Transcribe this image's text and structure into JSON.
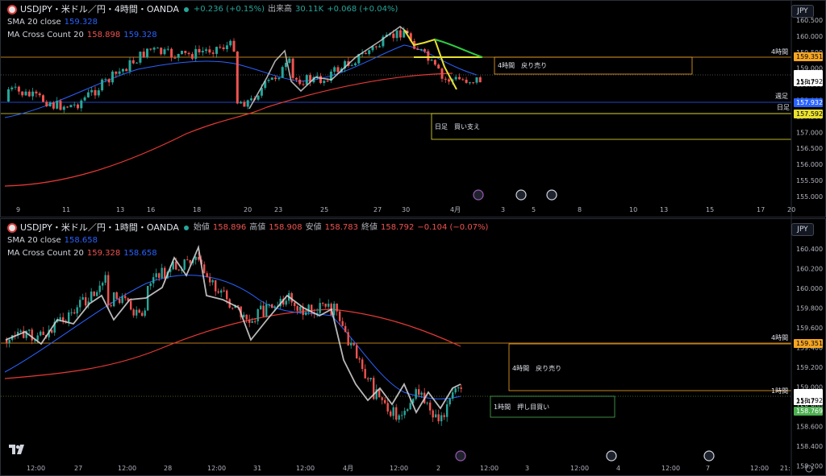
{
  "pane1": {
    "title": "USDJPY・米ドル／円・4時間・OANDA",
    "change": "+0.236 (+0.15%)",
    "volume_label": "出来高",
    "volume_value": "30.11K",
    "volume_change": "+0.068 (+0.04%)",
    "sma_label": "SMA 20 close",
    "sma_value": "159.328",
    "ma_cross_label": "MA Cross Count 20",
    "ma_cross_value1": "158.898",
    "ma_cross_value2": "159.328",
    "currency": "JPY",
    "price_ticks": [
      "160.500",
      "160.000",
      "159.500",
      "159.000",
      "158.500",
      "158.000",
      "157.500",
      "157.000",
      "156.500",
      "156.000",
      "155.500",
      "155.000"
    ],
    "date_ticks": [
      "9",
      "11",
      "13",
      "16",
      "18",
      "20",
      "23",
      "25",
      "27",
      "30",
      "4月",
      "3",
      "5",
      "8",
      "10",
      "13",
      "15",
      "17",
      "20"
    ],
    "lines": {
      "h4_label": "4時間",
      "h4_price": "159.351",
      "weekly_label": "週足",
      "weekly_price": "157.932",
      "daily_label": "日足",
      "daily_price": "157.592",
      "current_price": "158.792",
      "countdown": "21:47"
    },
    "boxes": {
      "sell_text": "4時間　戻り売り",
      "support_text": "日足　買い支え"
    },
    "colors": {
      "up": "#26a69a",
      "down": "#ef5350",
      "sma": "#2962ff",
      "ma": "#e53935",
      "h4": "#f5a623",
      "weekly": "#2962ff",
      "daily": "#e8e030"
    }
  },
  "pane2": {
    "title": "USDJPY・米ドル／円・1時間・OANDA",
    "open_label": "始値",
    "open": "158.896",
    "high_label": "高値",
    "high": "158.908",
    "low_label": "安値",
    "low": "158.783",
    "close_label": "終値",
    "close": "158.792",
    "change": "−0.104 (−0.07%)",
    "sma_label": "SMA 20 close",
    "sma_value": "158.658",
    "ma_cross_label": "MA Cross Count 20",
    "ma_cross_value1": "159.328",
    "ma_cross_value2": "158.658",
    "currency": "JPY",
    "price_ticks": [
      "160.400",
      "160.200",
      "160.000",
      "159.800",
      "159.600",
      "159.400",
      "159.200",
      "159.000",
      "158.800",
      "158.600",
      "158.400",
      "158.200"
    ],
    "date_ticks": [
      "12:00",
      "27",
      "12:00",
      "28",
      "12:00",
      "31",
      "12:00",
      "4月",
      "12:00",
      "2",
      "12:00",
      "3",
      "12:00",
      "4",
      "12:00",
      "7",
      "12:00",
      "21:"
    ],
    "lines": {
      "h4_label": "4時間",
      "h4_price": "159.351",
      "h1_label": "1時間",
      "current_price": "158.792",
      "countdown": "21:47",
      "h1_price": "158.769"
    },
    "boxes": {
      "sell_text": "4時間　戻り売り",
      "buy_text": "1時間　押し目買い"
    }
  }
}
